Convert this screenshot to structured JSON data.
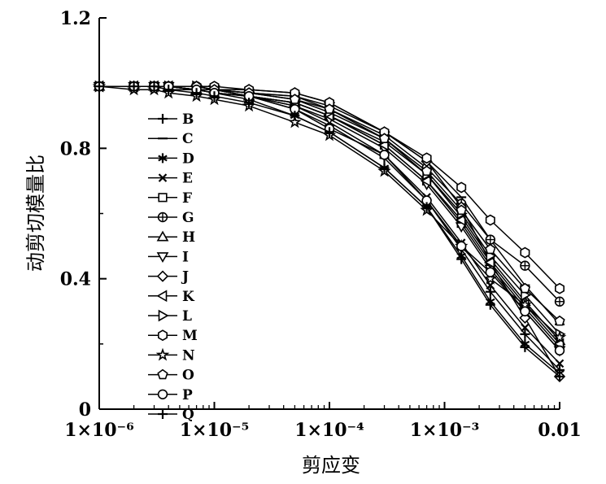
{
  "chart_data": {
    "type": "line",
    "title": "",
    "xlabel": "剪应变",
    "ylabel": "动剪切模量比",
    "x_scale": "log",
    "xlim": [
      1e-06,
      0.01
    ],
    "ylim": [
      0,
      1.2
    ],
    "x_ticks": [
      {
        "value": 1e-06,
        "label": "1×10⁻⁶"
      },
      {
        "value": 1e-05,
        "label": "1×10⁻⁵"
      },
      {
        "value": 0.0001,
        "label": "1×10⁻⁴"
      },
      {
        "value": 0.001,
        "label": "1×10⁻³"
      },
      {
        "value": 0.01,
        "label": "0.01"
      }
    ],
    "y_ticks": [
      {
        "value": 0,
        "label": "0"
      },
      {
        "value": 0.4,
        "label": "0.4"
      },
      {
        "value": 0.8,
        "label": "0.8"
      },
      {
        "value": 1.2,
        "label": "1.2"
      }
    ],
    "grid": false,
    "legend_position": "left-center",
    "x": [
      1e-06,
      2e-06,
      3e-06,
      4e-06,
      7e-06,
      1e-05,
      2e-05,
      5e-05,
      0.0001,
      0.0003,
      0.0007,
      0.0014,
      0.0025,
      0.005,
      0.01
    ],
    "series": [
      {
        "name": "B",
        "marker": "plus",
        "values": [
          0.99,
          0.99,
          0.99,
          0.98,
          0.98,
          0.97,
          0.96,
          0.92,
          0.87,
          0.77,
          0.64,
          0.49,
          0.36,
          0.23,
          0.12
        ]
      },
      {
        "name": "C",
        "marker": "minus",
        "values": [
          0.99,
          0.99,
          0.99,
          0.99,
          0.99,
          0.98,
          0.97,
          0.96,
          0.93,
          0.85,
          0.76,
          0.65,
          0.52,
          0.38,
          0.26
        ]
      },
      {
        "name": "D",
        "marker": "asterisk",
        "values": [
          0.99,
          0.99,
          0.99,
          0.98,
          0.98,
          0.97,
          0.95,
          0.9,
          0.85,
          0.74,
          0.62,
          0.47,
          0.33,
          0.2,
          0.11
        ]
      },
      {
        "name": "E",
        "marker": "x",
        "values": [
          0.99,
          0.99,
          0.99,
          0.99,
          0.98,
          0.97,
          0.96,
          0.93,
          0.88,
          0.78,
          0.65,
          0.51,
          0.38,
          0.25,
          0.14
        ]
      },
      {
        "name": "F",
        "marker": "square",
        "values": [
          0.99,
          0.99,
          0.99,
          0.99,
          0.98,
          0.98,
          0.96,
          0.94,
          0.9,
          0.81,
          0.7,
          0.57,
          0.44,
          0.31,
          0.19
        ]
      },
      {
        "name": "G",
        "marker": "circleplus",
        "values": [
          0.99,
          0.99,
          0.99,
          0.99,
          0.99,
          0.98,
          0.97,
          0.96,
          0.92,
          0.84,
          0.74,
          0.63,
          0.52,
          0.44,
          0.33
        ]
      },
      {
        "name": "H",
        "marker": "triangle",
        "values": [
          0.99,
          0.99,
          0.99,
          0.99,
          0.98,
          0.98,
          0.96,
          0.94,
          0.9,
          0.82,
          0.72,
          0.59,
          0.46,
          0.33,
          0.21
        ]
      },
      {
        "name": "I",
        "marker": "triangledown",
        "values": [
          0.99,
          0.99,
          0.99,
          0.99,
          0.98,
          0.98,
          0.96,
          0.93,
          0.89,
          0.8,
          0.69,
          0.56,
          0.43,
          0.3,
          0.18
        ]
      },
      {
        "name": "J",
        "marker": "diamond",
        "values": [
          0.99,
          0.99,
          0.99,
          0.99,
          0.99,
          0.98,
          0.98,
          0.97,
          0.94,
          0.85,
          0.76,
          0.62,
          0.45,
          0.28,
          0.1
        ]
      },
      {
        "name": "K",
        "marker": "triangleleft",
        "values": [
          0.99,
          0.99,
          0.99,
          0.99,
          0.98,
          0.98,
          0.96,
          0.94,
          0.9,
          0.81,
          0.7,
          0.58,
          0.45,
          0.32,
          0.2
        ]
      },
      {
        "name": "L",
        "marker": "triangleright",
        "values": [
          0.99,
          0.99,
          0.99,
          0.99,
          0.99,
          0.98,
          0.97,
          0.95,
          0.91,
          0.83,
          0.72,
          0.6,
          0.47,
          0.35,
          0.23
        ]
      },
      {
        "name": "M",
        "marker": "hexagon",
        "values": [
          0.99,
          0.99,
          0.99,
          0.99,
          0.99,
          0.99,
          0.98,
          0.97,
          0.94,
          0.85,
          0.77,
          0.68,
          0.58,
          0.48,
          0.37
        ]
      },
      {
        "name": "N",
        "marker": "star",
        "values": [
          0.99,
          0.98,
          0.98,
          0.97,
          0.96,
          0.95,
          0.93,
          0.88,
          0.84,
          0.73,
          0.61,
          0.5,
          0.4,
          0.32,
          0.22
        ]
      },
      {
        "name": "O",
        "marker": "pentagon",
        "values": [
          0.99,
          0.99,
          0.99,
          0.99,
          0.99,
          0.98,
          0.97,
          0.95,
          0.92,
          0.83,
          0.73,
          0.61,
          0.49,
          0.37,
          0.27
        ]
      },
      {
        "name": "P",
        "marker": "circle",
        "values": [
          0.99,
          0.99,
          0.99,
          0.99,
          0.98,
          0.97,
          0.96,
          0.92,
          0.86,
          0.78,
          0.64,
          0.5,
          0.42,
          0.3,
          0.18
        ]
      },
      {
        "name": "Q",
        "marker": "plus",
        "values": [
          0.99,
          0.99,
          0.99,
          0.98,
          0.97,
          0.96,
          0.94,
          0.9,
          0.85,
          0.74,
          0.62,
          0.46,
          0.32,
          0.19,
          0.1
        ]
      }
    ]
  }
}
